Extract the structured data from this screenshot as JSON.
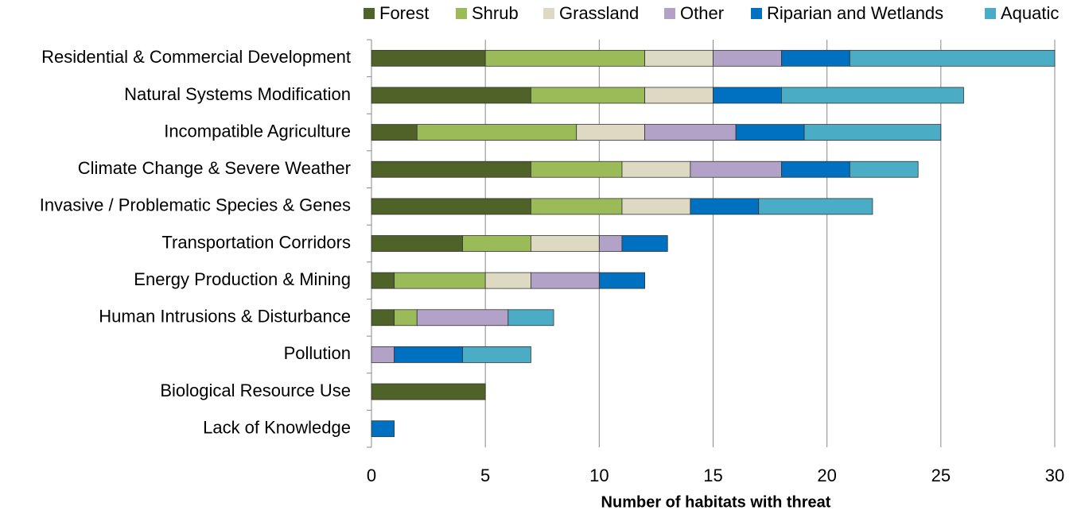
{
  "chart_data": {
    "type": "stacked-bar-horizontal",
    "x_label": "Number of habitats  with threat",
    "categories": [
      "Residential & Commercial Development",
      "Natural Systems Modification",
      "Incompatible Agriculture",
      "Climate Change & Severe Weather",
      "Invasive / Problematic Species & Genes",
      "Transportation Corridors",
      "Energy Production & Mining",
      "Human Intrusions & Disturbance",
      "Pollution",
      "Biological Resource Use",
      "Lack of Knowledge"
    ],
    "series": [
      {
        "name": "Forest",
        "color": "#4f6228",
        "values": [
          5,
          7,
          2,
          7,
          7,
          4,
          1,
          1,
          0,
          5,
          0
        ]
      },
      {
        "name": "Shrub",
        "color": "#9bbb59",
        "values": [
          7,
          5,
          7,
          4,
          4,
          3,
          4,
          1,
          0,
          0,
          0
        ]
      },
      {
        "name": "Grassland",
        "color": "#ddd9c3",
        "values": [
          3,
          3,
          3,
          3,
          3,
          3,
          2,
          0,
          0,
          0,
          0
        ]
      },
      {
        "name": "Other",
        "color": "#b3a2c7",
        "values": [
          3,
          0,
          4,
          4,
          0,
          1,
          3,
          4,
          1,
          0,
          0
        ]
      },
      {
        "name": "Riparian and Wetlands",
        "color": "#0070c0",
        "values": [
          3,
          3,
          3,
          3,
          3,
          2,
          2,
          0,
          3,
          0,
          1
        ]
      },
      {
        "name": "Aquatic",
        "color": "#4bacc6",
        "values": [
          9,
          8,
          6,
          3,
          5,
          0,
          0,
          2,
          3,
          0,
          0
        ]
      }
    ],
    "xlim": [
      0,
      30
    ],
    "xticks": [
      0,
      5,
      10,
      15,
      20,
      25,
      30
    ],
    "grid": true,
    "legend": "top"
  }
}
